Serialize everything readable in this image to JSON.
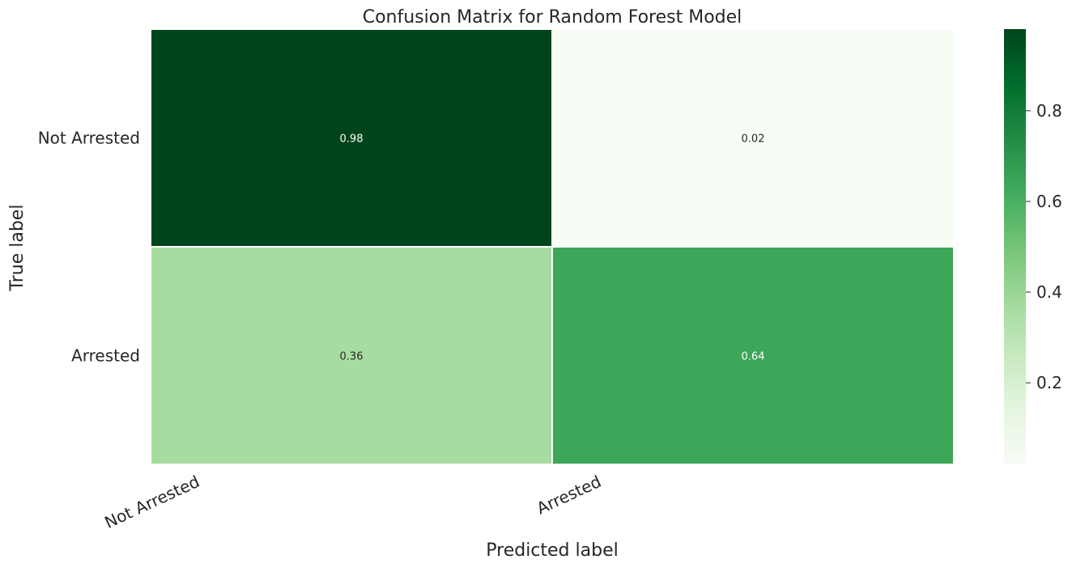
{
  "chart_data": {
    "type": "heatmap",
    "title": "Confusion Matrix for Random Forest Model",
    "xlabel": "Predicted label",
    "ylabel": "True label",
    "x_categories": [
      "Not Arrested",
      "Arrested"
    ],
    "y_categories": [
      "Not Arrested",
      "Arrested"
    ],
    "values": [
      [
        0.98,
        0.02
      ],
      [
        0.36,
        0.64
      ]
    ],
    "value_labels": [
      [
        "0.98",
        "0.02"
      ],
      [
        "0.36",
        "0.64"
      ]
    ],
    "colormap": "Greens",
    "colorbar": {
      "range": [
        0.02,
        0.98
      ],
      "ticks": [
        0.2,
        0.4,
        0.6,
        0.8
      ],
      "tick_labels": [
        "0.2",
        "0.4",
        "0.6",
        "0.8"
      ]
    }
  }
}
